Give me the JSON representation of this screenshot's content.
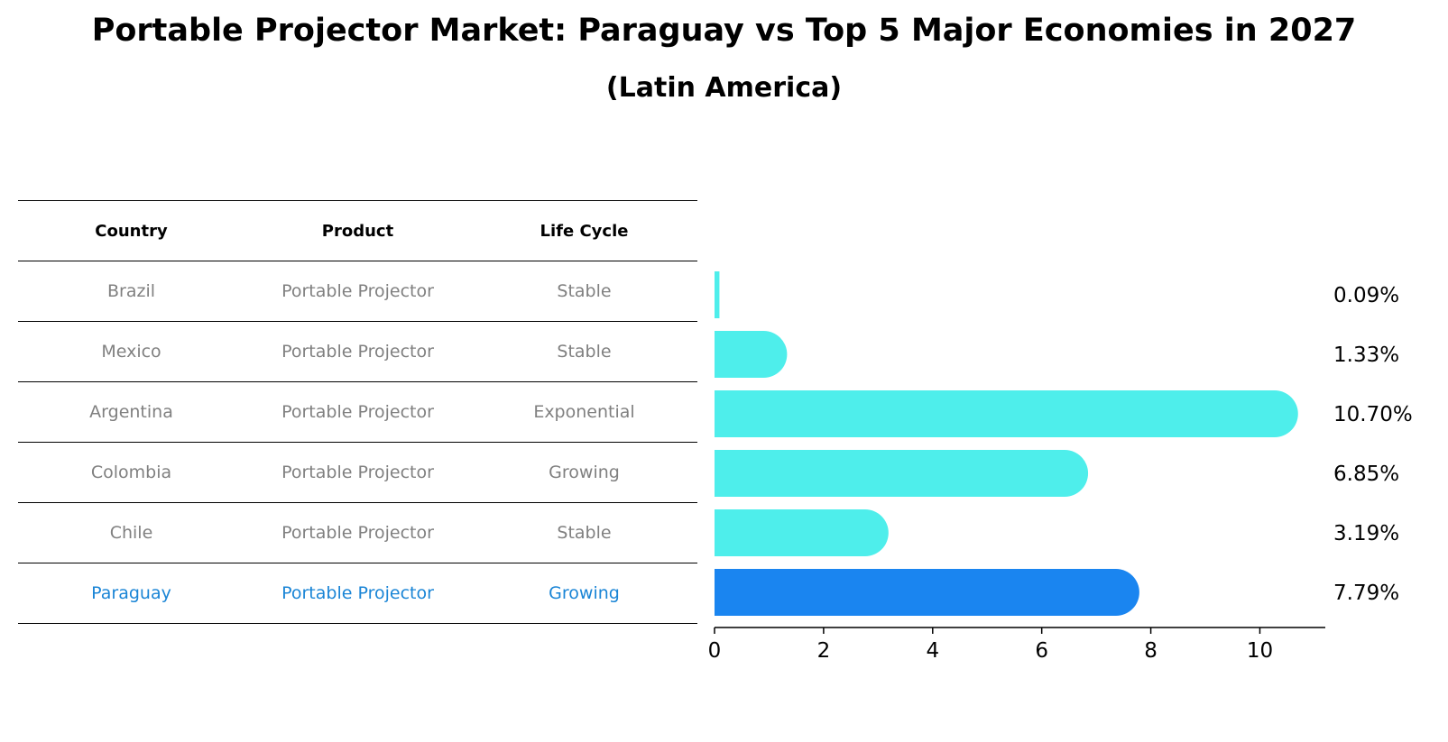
{
  "header": {
    "title": "Portable Projector Market: Paraguay vs Top 5 Major Economies in 2027",
    "subtitle": "(Latin America)"
  },
  "table": {
    "columns": [
      "Country",
      "Product",
      "Life Cycle"
    ],
    "rows": [
      {
        "country": "Brazil",
        "product": "Portable Projector",
        "life_cycle": "Stable",
        "highlight": false
      },
      {
        "country": "Mexico",
        "product": "Portable Projector",
        "life_cycle": "Stable",
        "highlight": false
      },
      {
        "country": "Argentina",
        "product": "Portable Projector",
        "life_cycle": "Exponential",
        "highlight": false
      },
      {
        "country": "Colombia",
        "product": "Portable Projector",
        "life_cycle": "Growing",
        "highlight": false
      },
      {
        "country": "Chile",
        "product": "Portable Projector",
        "life_cycle": "Stable",
        "highlight": false
      },
      {
        "country": "Paraguay",
        "product": "Portable Projector",
        "life_cycle": "Growing",
        "highlight": true
      }
    ]
  },
  "chart_data": {
    "type": "bar",
    "orientation": "horizontal",
    "categories": [
      "Brazil",
      "Mexico",
      "Argentina",
      "Colombia",
      "Chile",
      "Paraguay"
    ],
    "values": [
      0.09,
      1.33,
      10.7,
      6.85,
      3.19,
      7.79
    ],
    "value_labels": [
      "0.09%",
      "1.33%",
      "10.70%",
      "6.85%",
      "3.19%",
      "7.79%"
    ],
    "xlim": [
      0,
      11.2
    ],
    "xticks": [
      0,
      2,
      4,
      6,
      8,
      10
    ],
    "grid": false,
    "colors": {
      "default": "#4eeeeb",
      "highlight": "#1a85f0"
    },
    "highlight_index": 5
  }
}
